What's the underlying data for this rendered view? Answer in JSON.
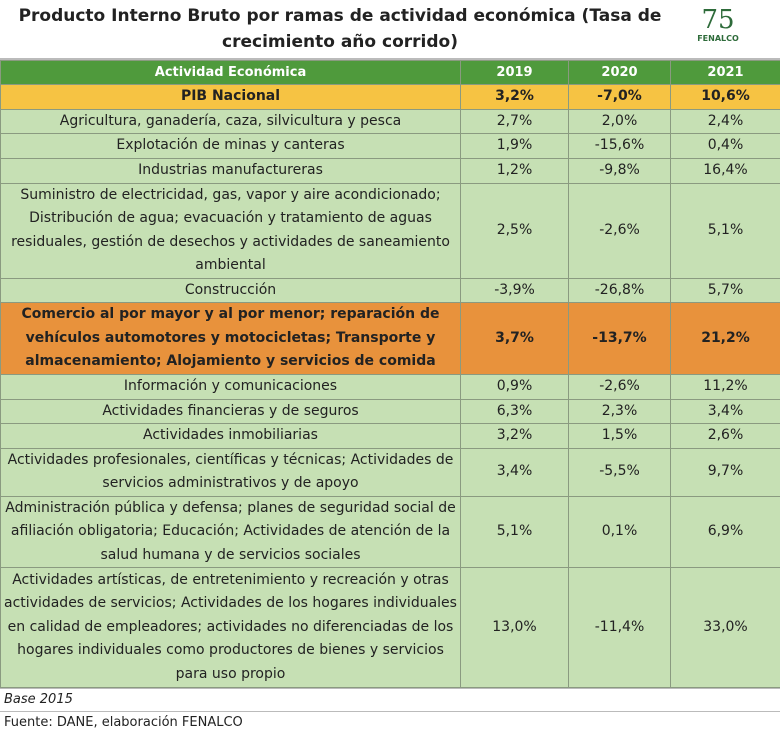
{
  "header": {
    "title": "Producto Interno Bruto por ramas de actividad económica (Tasa de crecimiento año corrido)",
    "logo_number": "75",
    "logo_name": "FENALCO"
  },
  "table": {
    "columns": [
      "Actividad Económica",
      "2019",
      "2020",
      "2021"
    ],
    "rows": [
      [
        "PIB Nacional",
        "3,2%",
        "-7,0%",
        "10,6%"
      ],
      [
        "Agricultura, ganadería, caza, silvicultura y pesca",
        "2,7%",
        "2,0%",
        "2,4%"
      ],
      [
        "Explotación de minas y canteras",
        "1,9%",
        "-15,6%",
        "0,4%"
      ],
      [
        "Industrias manufactureras",
        "1,2%",
        "-9,8%",
        "16,4%"
      ],
      [
        "Suministro de electricidad, gas, vapor y aire acondicionado; Distribución de agua; evacuación y tratamiento de aguas residuales, gestión de desechos y actividades de saneamiento ambiental",
        "2,5%",
        "-2,6%",
        "5,1%"
      ],
      [
        "Construcción",
        "-3,9%",
        "-26,8%",
        "5,7%"
      ],
      [
        "Comercio al por mayor y al por menor; reparación de vehículos automotores y motocicletas; Transporte y almacenamiento; Alojamiento y servicios de comida",
        "3,7%",
        "-13,7%",
        "21,2%"
      ],
      [
        "Información y comunicaciones",
        "0,9%",
        "-2,6%",
        "11,2%"
      ],
      [
        "Actividades financieras y de seguros",
        "6,3%",
        "2,3%",
        "3,4%"
      ],
      [
        "Actividades inmobiliarias",
        "3,2%",
        "1,5%",
        "2,6%"
      ],
      [
        "Actividades profesionales, científicas y técnicas; Actividades de servicios administrativos y de apoyo",
        "3,4%",
        "-5,5%",
        "9,7%"
      ],
      [
        "Administración pública y defensa; planes de seguridad social de afiliación obligatoria; Educación; Actividades de atención de la salud humana y de servicios sociales",
        "5,1%",
        "0,1%",
        "6,9%"
      ],
      [
        "Actividades artísticas, de entretenimiento y recreación y otras actividades de servicios; Actividades de los hogares individuales en calidad de empleadores; actividades no diferenciadas de los hogares individuales como productores de bienes y servicios para uso propio",
        "13,0%",
        "-11,4%",
        "33,0%"
      ]
    ]
  },
  "notes": [
    "Base 2015",
    "Fuente: DANE, elaboración FENALCO"
  ]
}
